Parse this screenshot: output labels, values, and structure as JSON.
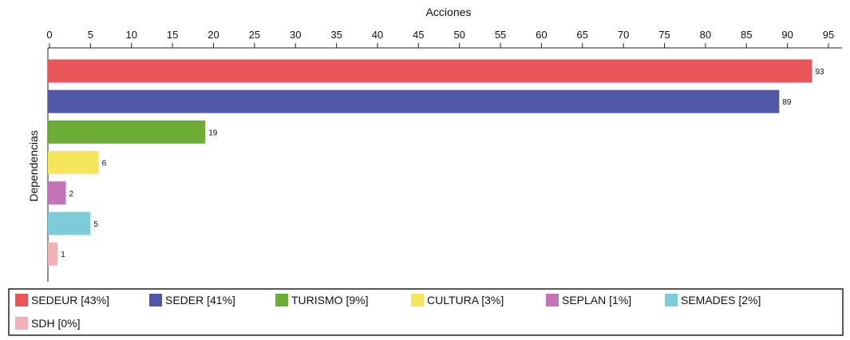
{
  "chart_data": {
    "type": "bar",
    "orientation": "horizontal",
    "xlabel": "Acciones",
    "ylabel": "Dependencias",
    "xlim": [
      0,
      97
    ],
    "xticks": [
      0,
      5,
      10,
      15,
      20,
      25,
      30,
      35,
      40,
      45,
      50,
      55,
      60,
      65,
      70,
      75,
      80,
      85,
      90,
      95
    ],
    "x_axis_position": "top",
    "grid": false,
    "legend_position": "bottom",
    "categories": [
      "SEDEUR",
      "SEDER",
      "TURISMO",
      "CULTURA",
      "SEPLAN",
      "SEMADES",
      "SDH"
    ],
    "values": [
      93,
      89,
      19,
      6,
      2,
      5,
      1
    ],
    "colors": [
      "#e8565a",
      "#4f57a6",
      "#6cad35",
      "#f5e65c",
      "#c473b6",
      "#7ecbda",
      "#f2b1b4"
    ],
    "legend": [
      {
        "label": "SEDEUR [43%]",
        "color": "#e8565a"
      },
      {
        "label": "SEDER [41%]",
        "color": "#4f57a6"
      },
      {
        "label": "TURISMO [9%]",
        "color": "#6cad35"
      },
      {
        "label": "CULTURA [3%]",
        "color": "#f5e65c"
      },
      {
        "label": "SEPLAN [1%]",
        "color": "#c473b6"
      },
      {
        "label": "SEMADES [2%]",
        "color": "#7ecbda"
      },
      {
        "label": "SDH [0%]",
        "color": "#f2b1b4"
      }
    ]
  }
}
